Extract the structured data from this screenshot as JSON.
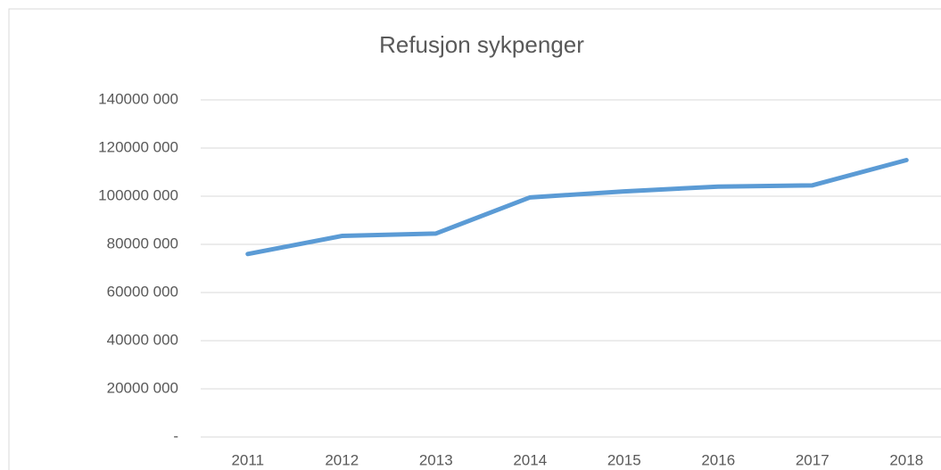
{
  "chart_data": {
    "type": "line",
    "title": "Refusjon sykpenger",
    "categories": [
      "2011",
      "2012",
      "2013",
      "2014",
      "2015",
      "2016",
      "2017",
      "2018"
    ],
    "series": [
      {
        "name": "Refusjon sykpenger",
        "color": "#5b9bd5",
        "values": [
          76000000,
          83500000,
          84500000,
          99500000,
          102000000,
          104000000,
          104500000,
          115000000
        ]
      }
    ],
    "ylim": [
      0,
      140000000
    ],
    "yticks": [
      {
        "value": 0,
        "label": "-"
      },
      {
        "value": 20000000,
        "label": "20000 000"
      },
      {
        "value": 40000000,
        "label": "40000 000"
      },
      {
        "value": 60000000,
        "label": "60000 000"
      },
      {
        "value": 80000000,
        "label": "80000 000"
      },
      {
        "value": 100000000,
        "label": "100000 000"
      },
      {
        "value": 120000000,
        "label": "120000 000"
      },
      {
        "value": 140000000,
        "label": "140000 000"
      }
    ],
    "grid": true
  }
}
